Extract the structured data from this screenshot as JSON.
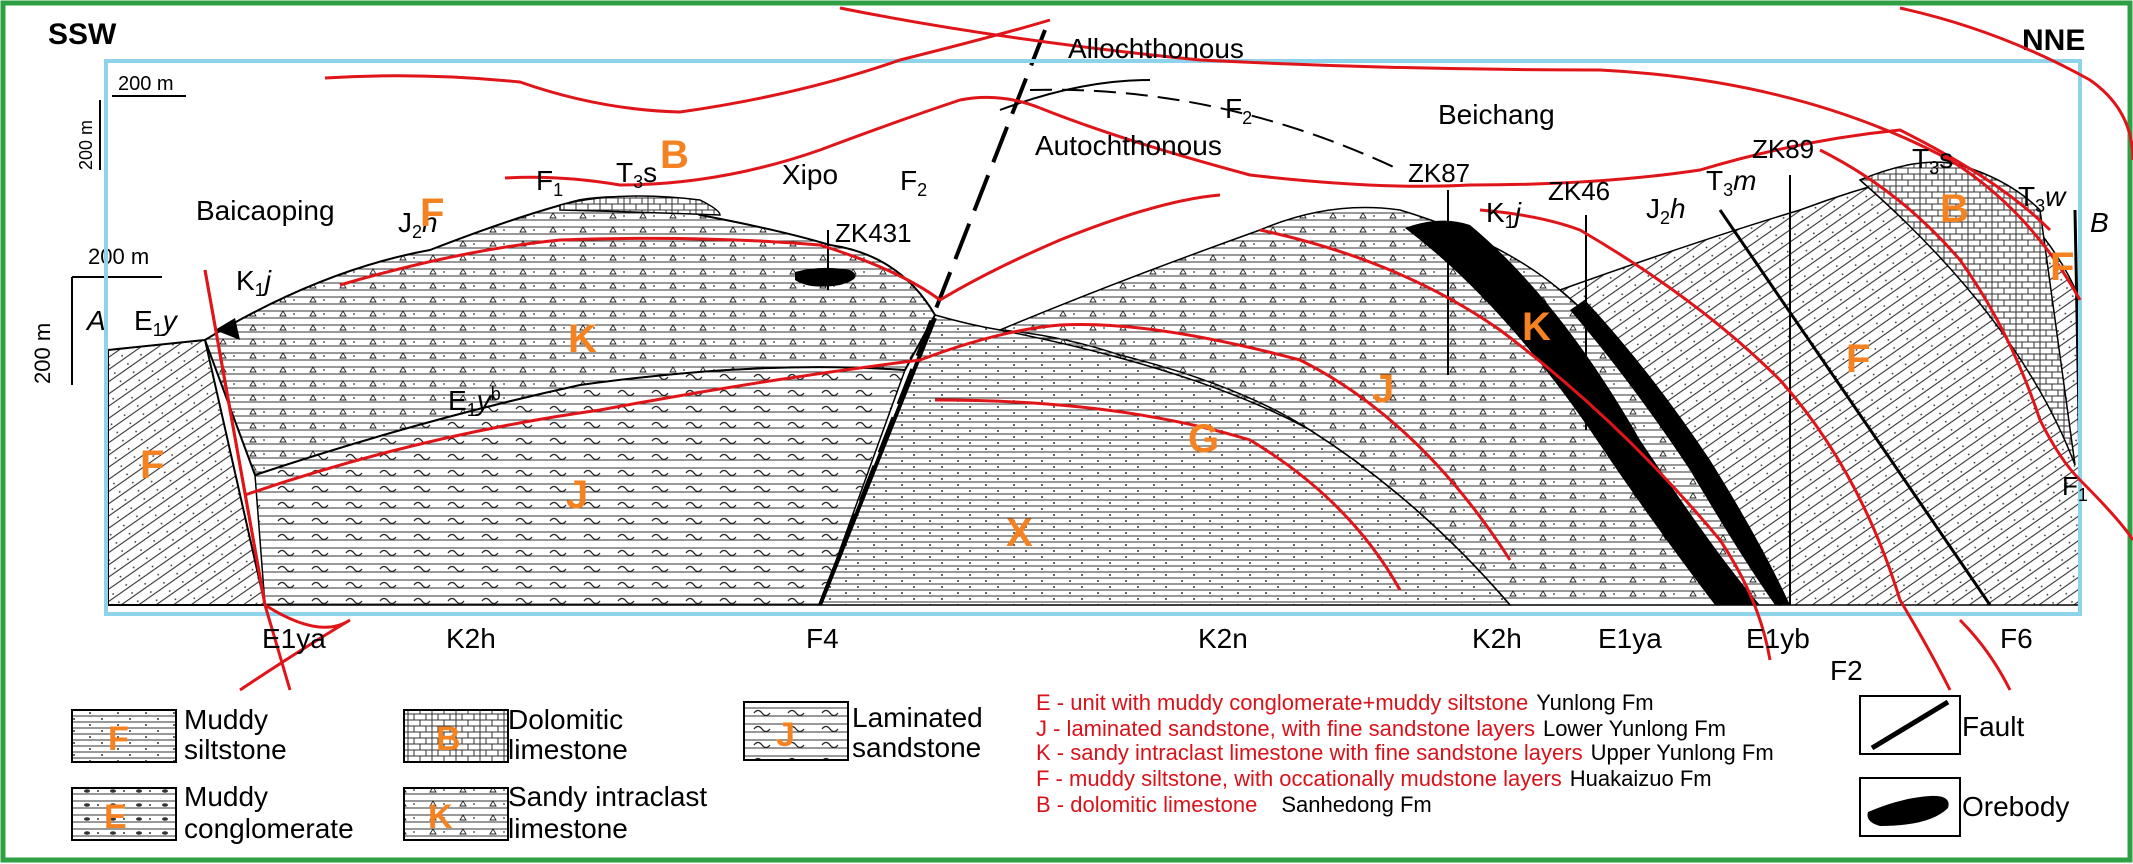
{
  "orientation": {
    "left": "SSW",
    "right": "NNE"
  },
  "scale": {
    "horizontal": "200 m",
    "vertical": "200 m",
    "ref_vertical": "200 m",
    "ref_horizontal": "200 m"
  },
  "section_ends": {
    "left": "A",
    "right": "B"
  },
  "place_names": [
    "Baicaoping",
    "Xipo",
    "Beichang"
  ],
  "tectonic_labels": {
    "allochthonous": "Allochthonous",
    "autochthonous": "Autochthonous"
  },
  "faults": {
    "f1": "F",
    "f1_sub": "1",
    "f2": "F",
    "f2_sub": "2",
    "f4": "F4",
    "f6": "F6"
  },
  "drillholes": [
    "ZK431",
    "ZK87",
    "ZK46",
    "ZK89"
  ],
  "unit_labels": {
    "e1y": "E",
    "e1y_sub": "1",
    "e1y_y": "y",
    "k1j": "K",
    "k1j_sub": "1",
    "k1j_j": "j",
    "j2h": "J",
    "j2h_sub": "2",
    "j2h_h": "h",
    "t3s": "T",
    "t3s_sub": "3",
    "t3s_s": "s",
    "t3m": "T",
    "t3m_sub": "3",
    "t3m_m": "m",
    "t3w": "T",
    "t3w_sub": "3",
    "t3w_w": "w",
    "e1yb": "E",
    "e1yb_sub": "1",
    "e1yb_y": "y",
    "e1yb_sup": "b"
  },
  "bottom_labels": {
    "e1ya": "E1ya",
    "k2h": "K2h",
    "f4": "F4",
    "k2n": "K2n",
    "k2h_b": "K2h",
    "e1ya_b": "E1ya",
    "e1yb": "E1yb",
    "f6": "F6",
    "f2": "F2"
  },
  "overlay_letters": [
    "B",
    "F",
    "K",
    "J",
    "G",
    "X",
    "K",
    "J",
    "F",
    "B",
    "F",
    "F"
  ],
  "legend": [
    {
      "text1": "Muddy",
      "text2": "siltstone",
      "code": "F"
    },
    {
      "text1": "Muddy",
      "text2": "conglomerate",
      "code": "E"
    },
    {
      "text1": "Dolomitic",
      "text2": "limestone",
      "code": "B"
    },
    {
      "text1": "Sandy intraclast",
      "text2": "limestone",
      "code": "K"
    },
    {
      "text1": "Laminated",
      "text2": "sandstone",
      "code": "J"
    }
  ],
  "annotations": [
    {
      "code_desc": "E - unit with muddy conglomerate+muddy siltstone",
      "fm": "Yunlong Fm"
    },
    {
      "code_desc": "J - laminated sandstone, with fine sandstone layers",
      "fm": "Lower Yunlong Fm"
    },
    {
      "code_desc": "K - sandy intraclast limestone with fine sandstone layers",
      "fm": "Upper Yunlong Fm"
    },
    {
      "code_desc": "F - muddy siltstone, with occationally mudstone layers",
      "fm": "Huakaizuo Fm"
    },
    {
      "code_desc": "B - dolomitic limestone",
      "fm": "Sanhedong Fm"
    }
  ],
  "symbol_legend": {
    "fault": "Fault",
    "orebody": "Orebody"
  },
  "colors": {
    "frame_green": "#2ea043",
    "box_blue": "#8fd3ea",
    "overlay_red": "#e0151a",
    "overlay_orange": "#f58220",
    "annotation_red": "#d9121a"
  }
}
